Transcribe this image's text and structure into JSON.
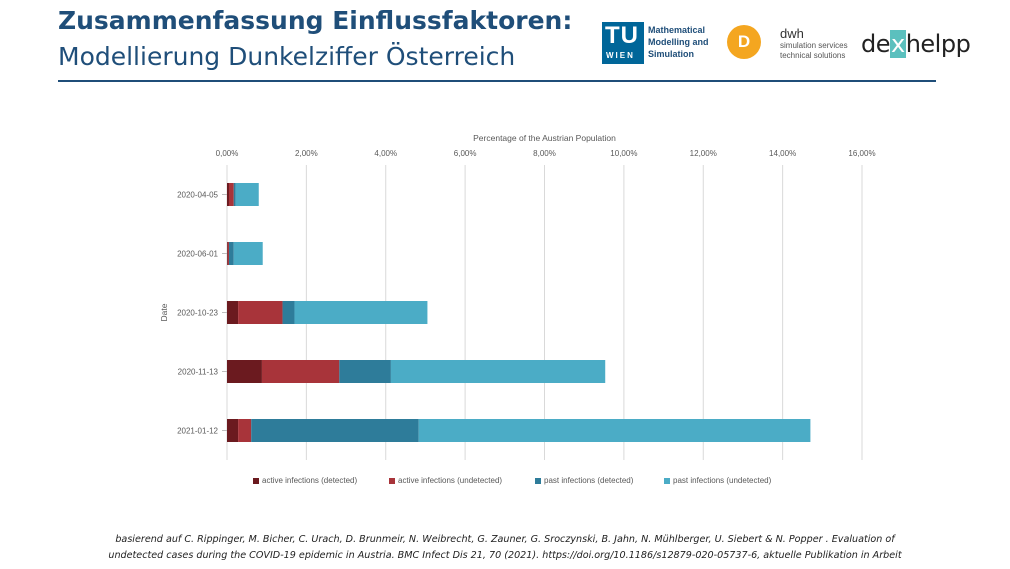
{
  "header": {
    "title_line1": "Zusammenfassung Einflussfaktoren:",
    "title_line2": "Modellierung Dunkelziffer Österreich"
  },
  "logos": {
    "tu_main": "TU",
    "tu_sub": "WIEN",
    "tu_text": [
      "Mathematical",
      "Modelling and",
      "Simulation"
    ],
    "dwh_mark": "D",
    "dwh_name": "dwh",
    "dwh_sub": [
      "simulation services",
      "technical solutions"
    ],
    "dex_before": "de",
    "dex_x": "x",
    "dex_after": "helpp"
  },
  "chart_data": {
    "type": "bar",
    "orientation": "horizontal",
    "stacked": true,
    "x_title": "Percentage of the Austrian Population",
    "y_title": "Date",
    "xlim": [
      0,
      16
    ],
    "x_axis_position": "top",
    "x_ticks": [
      0,
      2,
      4,
      6,
      8,
      10,
      12,
      14,
      16
    ],
    "x_tick_labels": [
      "0,00%",
      "2,00%",
      "4,00%",
      "6,00%",
      "8,00%",
      "10,00%",
      "12,00%",
      "14,00%",
      "16,00%"
    ],
    "grid": true,
    "legend_position": "bottom",
    "categories": [
      "2020-04-05",
      "2020-06-01",
      "2020-10-23",
      "2020-11-13",
      "2021-01-12"
    ],
    "series": [
      {
        "name": "active infections (detected)",
        "color": "#6b1a1f",
        "values": [
          0.05,
          0.02,
          0.28,
          0.88,
          0.28
        ]
      },
      {
        "name": "active infections (undetected)",
        "color": "#a8343a",
        "values": [
          0.12,
          0.03,
          1.12,
          1.95,
          0.33
        ]
      },
      {
        "name": "past infections (detected)",
        "color": "#2e7c9a",
        "values": [
          0.05,
          0.12,
          0.3,
          1.3,
          4.22
        ]
      },
      {
        "name": "past infections (undetected)",
        "color": "#4bacc6",
        "values": [
          0.58,
          0.73,
          3.35,
          5.4,
          9.87
        ]
      }
    ]
  },
  "citation": {
    "line1": "basierend auf C. Rippinger, M. Bicher, C. Urach, D. Brunmeir, N. Weibrecht, G. Zauner, G. Sroczynski, B. Jahn, N. Mühlberger, U. Siebert & N. Popper . Evaluation of",
    "line2": "undetected cases during the COVID-19 epidemic in Austria. BMC Infect Dis 21, 70 (2021). https://doi.org/10.1186/s12879-020-05737-6,  aktuelle Publikation  in Arbeit"
  }
}
